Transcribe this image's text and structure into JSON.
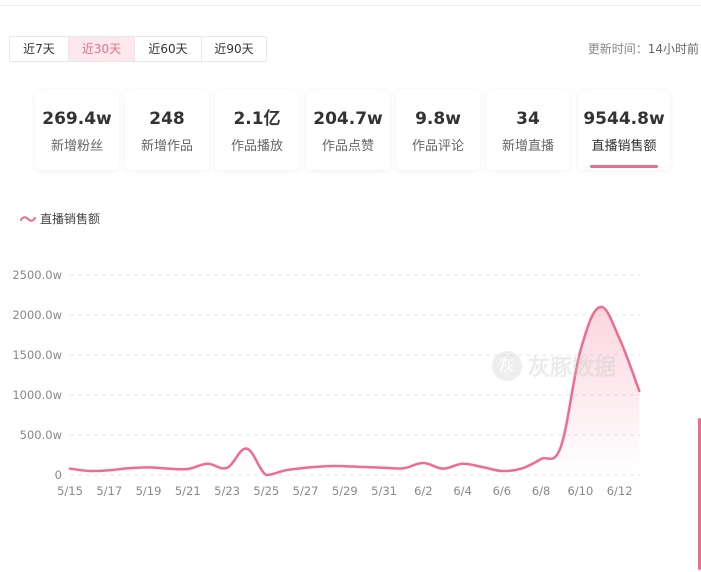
{
  "range_tabs": [
    {
      "label": "近7天",
      "active": false
    },
    {
      "label": "近30天",
      "active": true
    },
    {
      "label": "近60天",
      "active": false
    },
    {
      "label": "近90天",
      "active": false
    }
  ],
  "update": {
    "label": "更新时间：",
    "value": "14小时前"
  },
  "metrics": [
    {
      "value": "269.4w",
      "label": "新增粉丝"
    },
    {
      "value": "248",
      "label": "新增作品"
    },
    {
      "value": "2.1亿",
      "label": "作品播放"
    },
    {
      "value": "204.7w",
      "label": "作品点赞"
    },
    {
      "value": "9.8w",
      "label": "作品评论"
    },
    {
      "value": "34",
      "label": "新增直播"
    },
    {
      "value": "9544.8w",
      "label": "直播销售额",
      "active": true
    }
  ],
  "watermark": {
    "glyph": "灰",
    "text": "灰豚数据"
  },
  "colors": {
    "accent": "#ef6b8f",
    "grid": "#e6e6e6"
  },
  "chart_data": {
    "type": "area",
    "title": "",
    "xlabel": "",
    "ylabel": "",
    "legend": {
      "label": "直播销售额",
      "placement": "top-left"
    },
    "grid": true,
    "ylim": [
      0,
      2500
    ],
    "y_ticks": [
      {
        "value": 0,
        "label": "0"
      },
      {
        "value": 500,
        "label": "500.0w"
      },
      {
        "value": 1000,
        "label": "1000.0w"
      },
      {
        "value": 1500,
        "label": "1500.0w"
      },
      {
        "value": 2000,
        "label": "2000.0w"
      },
      {
        "value": 2500,
        "label": "2500.0w"
      }
    ],
    "x_ticks": [
      "5/15",
      "5/17",
      "5/19",
      "5/21",
      "5/23",
      "5/25",
      "5/27",
      "5/29",
      "5/31",
      "6/2",
      "6/4",
      "6/6",
      "6/8",
      "6/10",
      "6/12"
    ],
    "series": [
      {
        "name": "直播销售额",
        "x": [
          "5/15",
          "5/16",
          "5/17",
          "5/18",
          "5/19",
          "5/20",
          "5/21",
          "5/22",
          "5/23",
          "5/24",
          "5/25",
          "5/26",
          "5/27",
          "5/28",
          "5/29",
          "5/30",
          "5/31",
          "6/1",
          "6/2",
          "6/3",
          "6/4",
          "6/5",
          "6/6",
          "6/7",
          "6/8",
          "6/9",
          "6/10",
          "6/11",
          "6/12",
          "6/13"
        ],
        "values": [
          80,
          50,
          60,
          85,
          95,
          80,
          75,
          140,
          90,
          330,
          0,
          60,
          90,
          110,
          110,
          100,
          90,
          85,
          150,
          80,
          140,
          100,
          50,
          80,
          200,
          350,
          1550,
          2100,
          1700,
          1050
        ]
      }
    ]
  }
}
